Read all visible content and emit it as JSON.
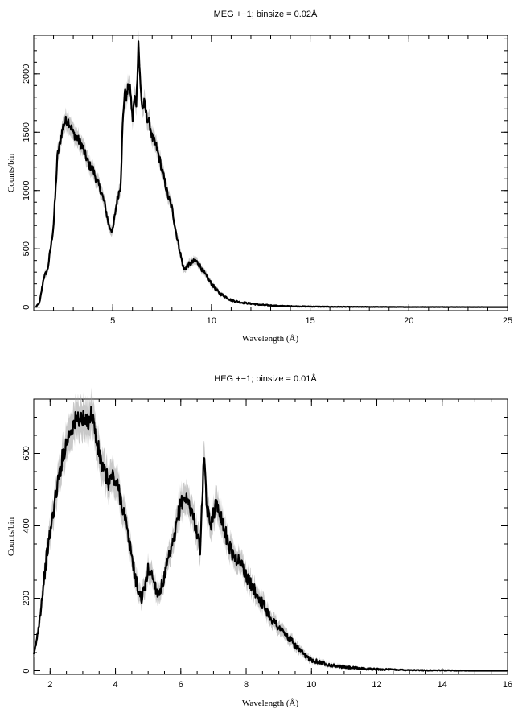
{
  "chart_data": [
    {
      "type": "line",
      "title": "MEG +−1; binsize = 0.02Å",
      "xlabel": "Wavelength (Å)",
      "ylabel": "Counts/bin",
      "xlim": [
        1.0,
        25.0
      ],
      "ylim": [
        -30,
        2330
      ],
      "xticks_major": [
        5,
        10,
        15,
        20,
        25
      ],
      "xticks_minor_step": 1,
      "yticks_major": [
        0,
        500,
        1000,
        1500,
        2000
      ],
      "yticks_minor_step": 100,
      "grid": false,
      "series": [
        {
          "x": [
            1.1,
            1.3,
            1.5,
            1.7,
            1.9,
            2.0,
            2.1,
            2.2,
            2.3,
            2.4,
            2.5,
            2.6,
            2.7,
            2.8,
            2.9,
            3.0,
            3.1,
            3.2,
            3.3,
            3.4,
            3.5,
            3.6,
            3.8,
            4.0,
            4.2,
            4.4,
            4.6,
            4.8,
            5.0,
            5.2,
            5.4,
            5.5,
            5.6,
            5.7,
            5.8,
            5.9,
            6.0,
            6.1,
            6.2,
            6.3,
            6.4,
            6.5,
            6.6,
            6.7,
            6.8,
            6.9,
            7.0,
            7.2,
            7.4,
            7.6,
            7.8,
            8.0,
            8.2,
            8.4,
            8.6,
            8.8,
            9.0,
            9.2,
            9.4,
            9.6,
            9.8,
            10.0,
            10.2,
            10.4,
            10.6,
            10.8,
            11.0,
            11.5,
            12.0,
            12.5,
            13.0,
            13.5,
            14.0,
            15.0,
            16.0,
            18.0,
            20.0,
            22.0,
            25.0
          ],
          "y": [
            0,
            40,
            250,
            320,
            560,
            700,
            980,
            1300,
            1380,
            1480,
            1560,
            1590,
            1610,
            1580,
            1540,
            1490,
            1470,
            1450,
            1420,
            1400,
            1360,
            1310,
            1220,
            1180,
            1080,
            1000,
            880,
            700,
            650,
            900,
            1050,
            1550,
            1850,
            1800,
            1900,
            1850,
            1600,
            1800,
            1750,
            2280,
            1900,
            1700,
            1750,
            1650,
            1600,
            1550,
            1450,
            1380,
            1250,
            1100,
            950,
            850,
            650,
            480,
            320,
            360,
            380,
            400,
            360,
            300,
            250,
            200,
            160,
            120,
            100,
            80,
            60,
            40,
            30,
            20,
            15,
            10,
            8,
            5,
            3,
            2,
            1,
            1,
            0
          ],
          "error_band_fraction": 0.04
        }
      ]
    },
    {
      "type": "line",
      "title": "HEG +−1; binsize = 0.01Å",
      "xlabel": "Wavelength (Å)",
      "ylabel": "Counts/bin",
      "xlim": [
        1.5,
        16.0
      ],
      "ylim": [
        -10,
        750
      ],
      "xticks_major": [
        2,
        4,
        6,
        8,
        10,
        12,
        14,
        16
      ],
      "xticks_minor_step": 0.5,
      "yticks_major": [
        0,
        200,
        400,
        600
      ],
      "yticks_minor_step": 50,
      "grid": false,
      "series": [
        {
          "x": [
            1.5,
            1.6,
            1.7,
            1.8,
            1.9,
            2.0,
            2.1,
            2.2,
            2.3,
            2.4,
            2.5,
            2.6,
            2.7,
            2.8,
            2.9,
            3.0,
            3.1,
            3.2,
            3.3,
            3.4,
            3.5,
            3.6,
            3.7,
            3.8,
            3.9,
            4.0,
            4.1,
            4.2,
            4.3,
            4.4,
            4.5,
            4.6,
            4.7,
            4.8,
            4.9,
            5.0,
            5.1,
            5.2,
            5.3,
            5.4,
            5.5,
            5.6,
            5.7,
            5.8,
            5.9,
            6.0,
            6.1,
            6.2,
            6.3,
            6.4,
            6.5,
            6.6,
            6.7,
            6.8,
            6.9,
            7.0,
            7.1,
            7.2,
            7.3,
            7.4,
            7.5,
            7.6,
            7.7,
            7.8,
            7.9,
            8.0,
            8.2,
            8.4,
            8.6,
            8.8,
            9.0,
            9.2,
            9.4,
            9.6,
            9.8,
            10.0,
            10.2,
            10.4,
            10.6,
            10.8,
            11.0,
            11.5,
            12.0,
            12.5,
            13.0,
            13.5,
            14.0,
            15.0,
            16.0
          ],
          "y": [
            40,
            90,
            160,
            240,
            320,
            380,
            440,
            500,
            550,
            600,
            630,
            660,
            680,
            690,
            700,
            690,
            680,
            700,
            710,
            640,
            600,
            560,
            540,
            520,
            540,
            520,
            500,
            460,
            420,
            360,
            320,
            260,
            220,
            200,
            230,
            280,
            270,
            240,
            210,
            230,
            260,
            300,
            330,
            360,
            420,
            460,
            480,
            470,
            450,
            420,
            380,
            330,
            590,
            450,
            400,
            440,
            460,
            440,
            400,
            370,
            340,
            320,
            310,
            300,
            290,
            260,
            230,
            200,
            170,
            140,
            120,
            100,
            80,
            60,
            40,
            30,
            25,
            20,
            15,
            12,
            10,
            6,
            4,
            3,
            2,
            1,
            1,
            0,
            0
          ],
          "error_band_fraction": 0.06
        }
      ]
    }
  ]
}
